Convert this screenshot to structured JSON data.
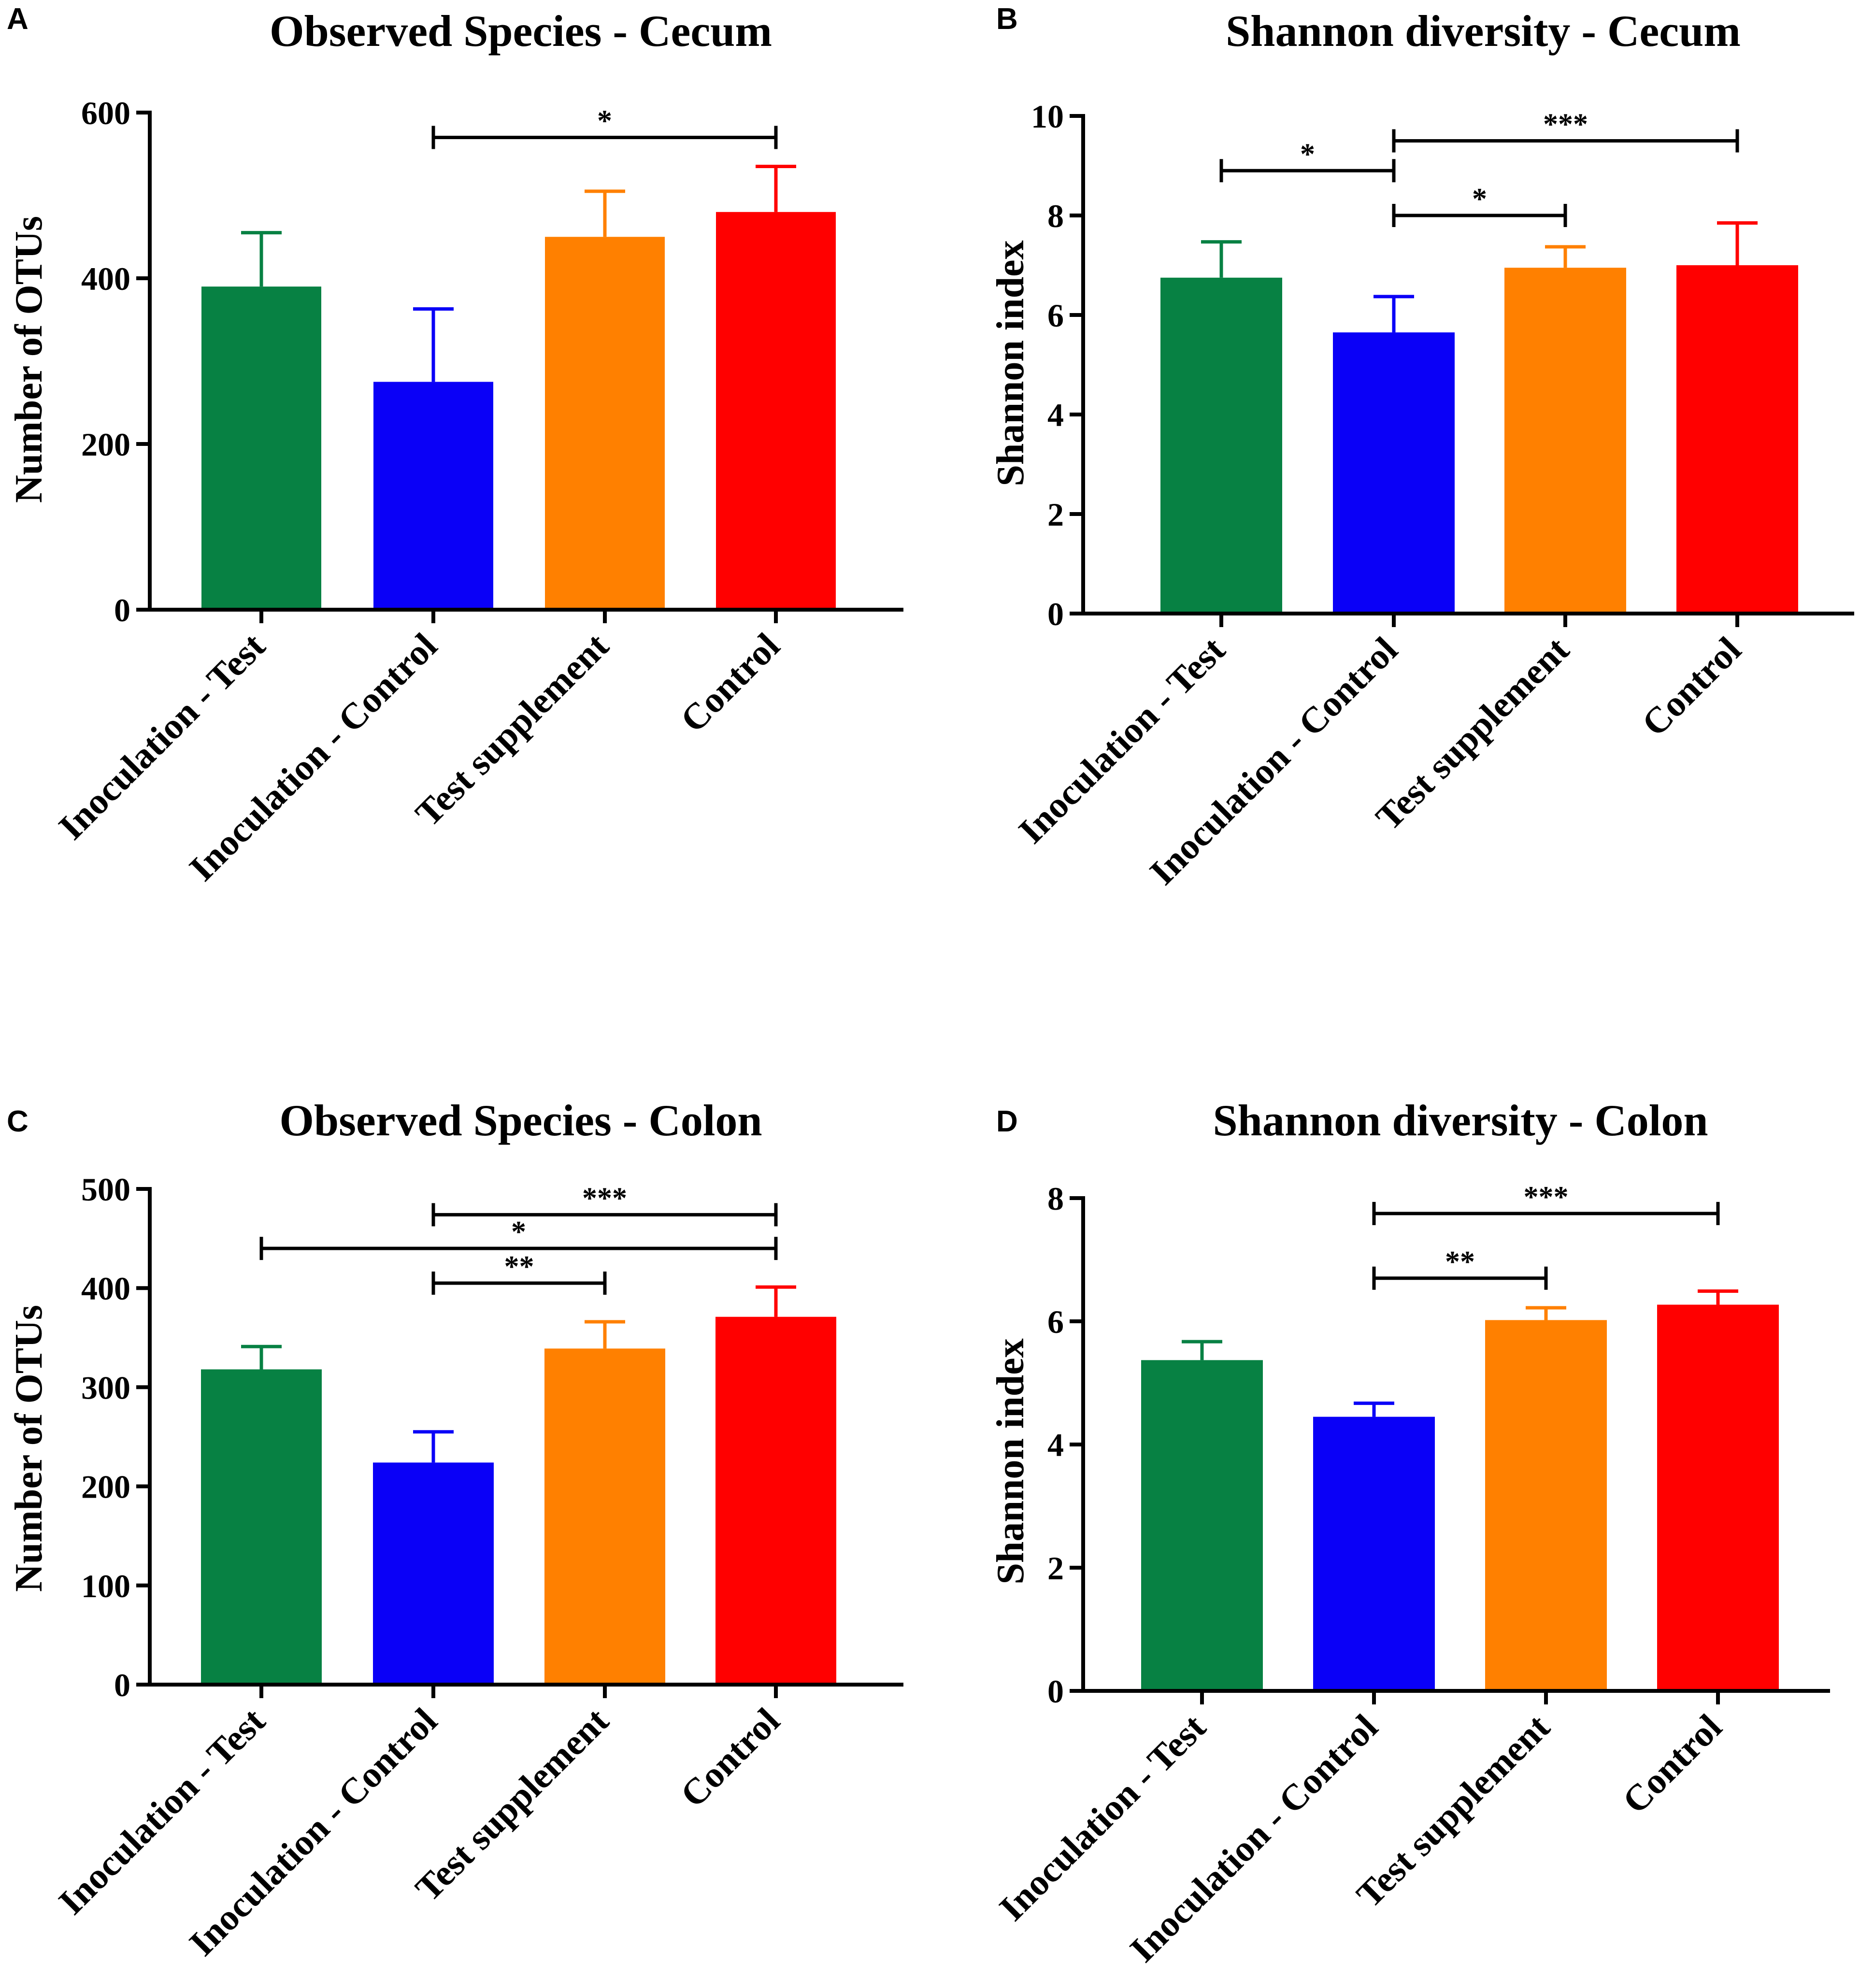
{
  "figure": {
    "chart_data": [
      {
        "panel": "A",
        "type": "bar",
        "title": "Observed Species - Cecum",
        "ylabel": "Number of OTUs",
        "xlabel": "",
        "categories": [
          "Inoculation - Test",
          "Inoculation - Control",
          "Test supplement",
          "Control"
        ],
        "values": [
          390,
          275,
          450,
          480
        ],
        "errors": [
          65,
          88,
          55,
          55
        ],
        "colors": [
          "#078143",
          "#0a00f7",
          "#ff8000",
          "#ff0000"
        ],
        "ylim": [
          0,
          600
        ],
        "yticks": [
          0,
          200,
          400,
          600
        ],
        "ytick_labels": [
          "0",
          "200",
          "400",
          "600"
        ],
        "significance": [
          {
            "from": 1,
            "to": 3,
            "label": "*",
            "level": 570
          }
        ]
      },
      {
        "panel": "B",
        "type": "bar",
        "title": "Shannon diversity - Cecum",
        "ylabel": "Shannon index",
        "xlabel": "",
        "categories": [
          "Inoculation - Test",
          "Inoculation - Control",
          "Test supplement",
          "Control"
        ],
        "values": [
          6.75,
          5.65,
          6.95,
          7.0
        ],
        "errors": [
          0.72,
          0.72,
          0.42,
          0.85
        ],
        "colors": [
          "#078143",
          "#0a00f7",
          "#ff8000",
          "#ff0000"
        ],
        "ylim": [
          0,
          10
        ],
        "yticks": [
          0,
          2,
          4,
          6,
          8,
          10
        ],
        "ytick_labels": [
          "0",
          "2",
          "4",
          "6",
          "8",
          "10"
        ],
        "significance": [
          {
            "from": 0,
            "to": 1,
            "label": "*",
            "level": 8.9
          },
          {
            "from": 1,
            "to": 3,
            "label": "***",
            "level": 9.5
          },
          {
            "from": 1,
            "to": 2,
            "label": "*",
            "level": 8.0
          }
        ]
      },
      {
        "panel": "C",
        "type": "bar",
        "title": "Observed Species - Colon",
        "ylabel": "Number of OTUs",
        "xlabel": "",
        "categories": [
          "Inoculation - Test",
          "Inoculation - Control",
          "Test supplement",
          "Control"
        ],
        "values": [
          318,
          224,
          339,
          371
        ],
        "errors": [
          23,
          31,
          27,
          30
        ],
        "colors": [
          "#078143",
          "#0a00f7",
          "#ff8000",
          "#ff0000"
        ],
        "ylim": [
          0,
          500
        ],
        "yticks": [
          0,
          100,
          200,
          300,
          400,
          500
        ],
        "ytick_labels": [
          "0",
          "100",
          "200",
          "300",
          "400",
          "500"
        ],
        "significance": [
          {
            "from": 1,
            "to": 3,
            "label": "***",
            "level": 474
          },
          {
            "from": 0,
            "to": 3,
            "label": "*",
            "level": 440
          },
          {
            "from": 1,
            "to": 2,
            "label": "**",
            "level": 405
          }
        ]
      },
      {
        "panel": "D",
        "type": "bar",
        "title": "Shannon diversity - Colon",
        "ylabel": "Shannon index",
        "xlabel": "",
        "categories": [
          "Inoculation - Test",
          "Inoculation - Control",
          "Test supplement",
          "Control"
        ],
        "values": [
          5.37,
          4.45,
          6.02,
          6.27
        ],
        "errors": [
          0.3,
          0.22,
          0.2,
          0.22
        ],
        "colors": [
          "#078143",
          "#0a00f7",
          "#ff8000",
          "#ff0000"
        ],
        "ylim": [
          0,
          8
        ],
        "yticks": [
          0,
          2,
          4,
          6,
          8
        ],
        "ytick_labels": [
          "0",
          "2",
          "4",
          "6",
          "8"
        ],
        "significance": [
          {
            "from": 1,
            "to": 3,
            "label": "***",
            "level": 7.75
          },
          {
            "from": 1,
            "to": 2,
            "label": "**",
            "level": 6.7
          }
        ]
      }
    ]
  }
}
